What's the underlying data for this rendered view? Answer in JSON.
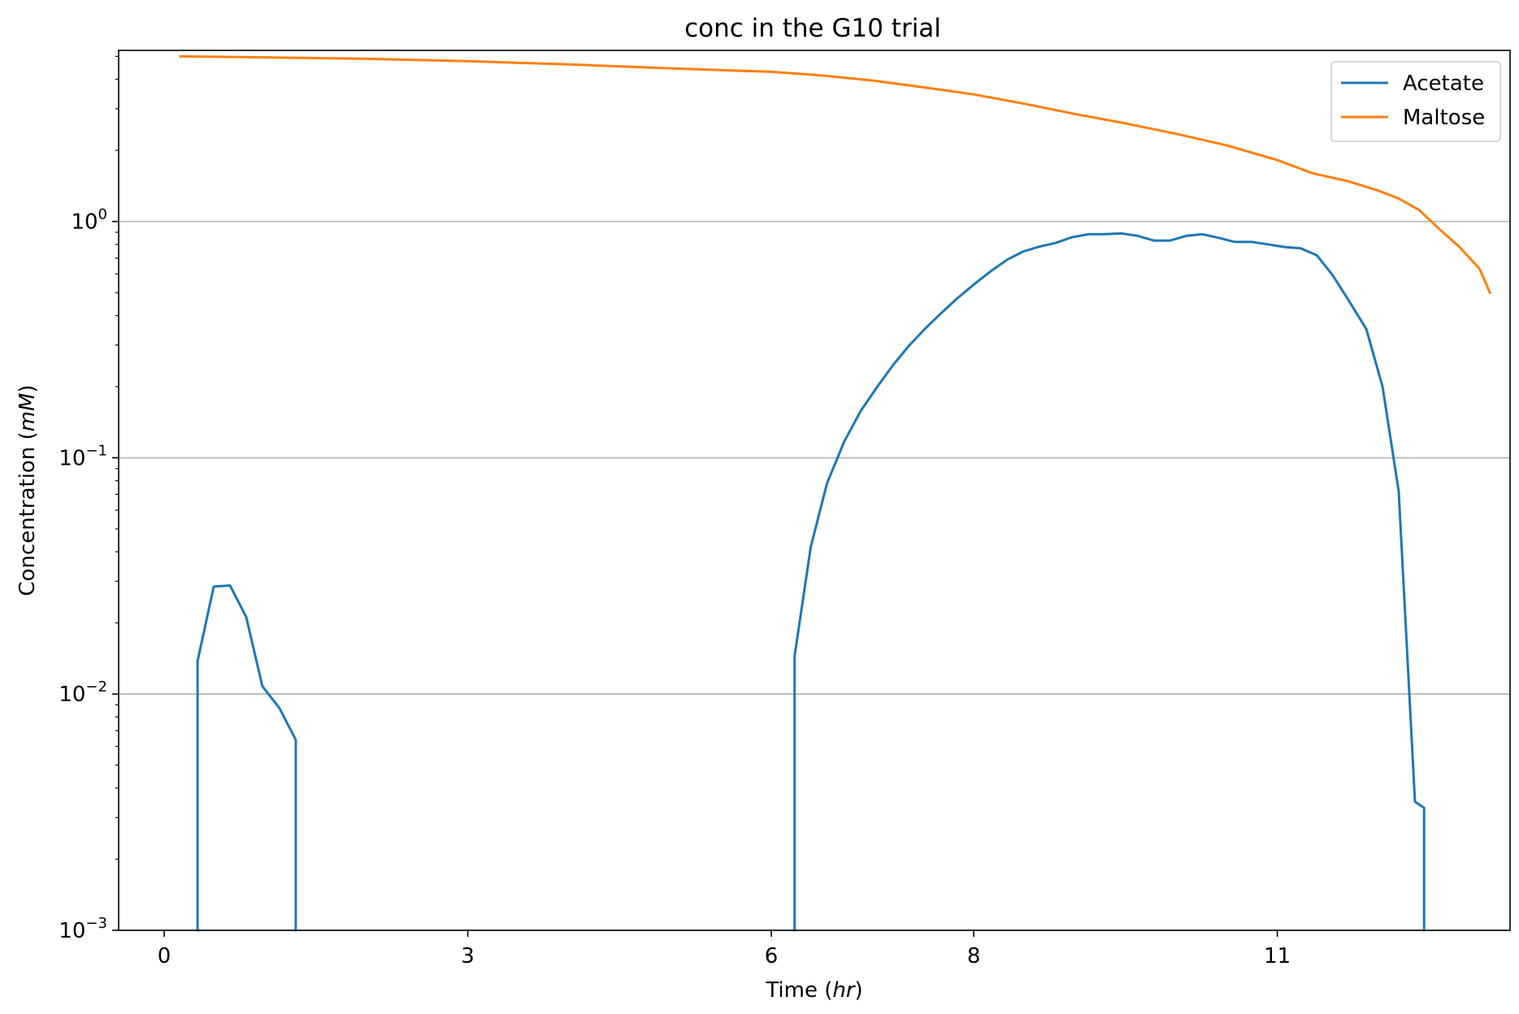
{
  "chart_data": {
    "type": "line",
    "title": "conc in the G10 trial",
    "xlabel_prefix": "Time (",
    "xlabel_unit": "hr",
    "xlabel_suffix": ")",
    "ylabel_prefix": "Concentration (",
    "ylabel_unit": "mM",
    "ylabel_suffix": ")",
    "xlim": [
      -0.45,
      13.3
    ],
    "ylim": [
      0.001,
      5.3
    ],
    "yscale": "log",
    "x_ticks": [
      {
        "value": 0,
        "label": "0"
      },
      {
        "value": 3,
        "label": "3"
      },
      {
        "value": 6,
        "label": "6"
      },
      {
        "value": 8,
        "label": "8"
      },
      {
        "value": 11,
        "label": "11"
      }
    ],
    "y_ticks": [
      {
        "value": 0.001,
        "base": "10",
        "exp": "−3"
      },
      {
        "value": 0.01,
        "base": "10",
        "exp": "−2"
      },
      {
        "value": 0.1,
        "base": "10",
        "exp": "−1"
      },
      {
        "value": 1,
        "base": "10",
        "exp": "0"
      }
    ],
    "grid": "y-major",
    "legend_position": "top-right",
    "series": [
      {
        "name": "Acetate",
        "color": "#1f77b4",
        "segments": [
          {
            "x": [
              0.33,
              0.33,
              0.49,
              0.65,
              0.81,
              0.97,
              1.14,
              1.3,
              1.3
            ],
            "y": [
              0.001,
              0.0138,
              0.0285,
              0.0288,
              0.0212,
              0.0108,
              0.0087,
              0.0064,
              0.001
            ]
          },
          {
            "x": [
              6.23,
              6.23,
              6.39,
              6.55,
              6.72,
              6.88,
              7.04,
              7.2,
              7.36,
              7.52,
              7.68,
              7.84,
              8.01,
              8.17,
              8.33,
              8.49,
              8.65,
              8.81,
              8.97,
              9.13,
              9.29,
              9.46,
              9.62,
              9.78,
              9.94,
              10.1,
              10.26,
              10.42,
              10.58,
              10.75,
              10.91,
              11.07,
              11.23,
              11.39,
              11.55,
              11.71,
              11.88,
              12.04,
              12.2,
              12.36,
              12.45,
              12.45
            ],
            "y": [
              0.001,
              0.0145,
              0.042,
              0.078,
              0.117,
              0.157,
              0.198,
              0.246,
              0.298,
              0.352,
              0.41,
              0.474,
              0.545,
              0.617,
              0.689,
              0.747,
              0.783,
              0.812,
              0.858,
              0.883,
              0.883,
              0.89,
              0.869,
              0.83,
              0.83,
              0.869,
              0.883,
              0.853,
              0.819,
              0.819,
              0.8,
              0.78,
              0.77,
              0.72,
              0.59,
              0.46,
              0.35,
              0.2,
              0.072,
              0.0035,
              0.0033,
              0.001
            ]
          }
        ]
      },
      {
        "name": "Maltose",
        "color": "#ff7f0e",
        "segments": [
          {
            "x": [
              0.16,
              1.0,
              2.0,
              3.0,
              4.0,
              5.0,
              6.0,
              6.5,
              7.0,
              7.5,
              8.0,
              8.5,
              9.0,
              9.5,
              10.0,
              10.5,
              11.0,
              11.35,
              11.7,
              12.0,
              12.2,
              12.4,
              12.6,
              12.8,
              13.0,
              13.1
            ],
            "y": [
              5.0,
              4.95,
              4.88,
              4.77,
              4.62,
              4.45,
              4.3,
              4.15,
              3.95,
              3.7,
              3.45,
              3.15,
              2.85,
              2.6,
              2.35,
              2.1,
              1.82,
              1.6,
              1.48,
              1.35,
              1.25,
              1.12,
              0.93,
              0.78,
              0.63,
              0.5
            ]
          }
        ]
      }
    ]
  }
}
